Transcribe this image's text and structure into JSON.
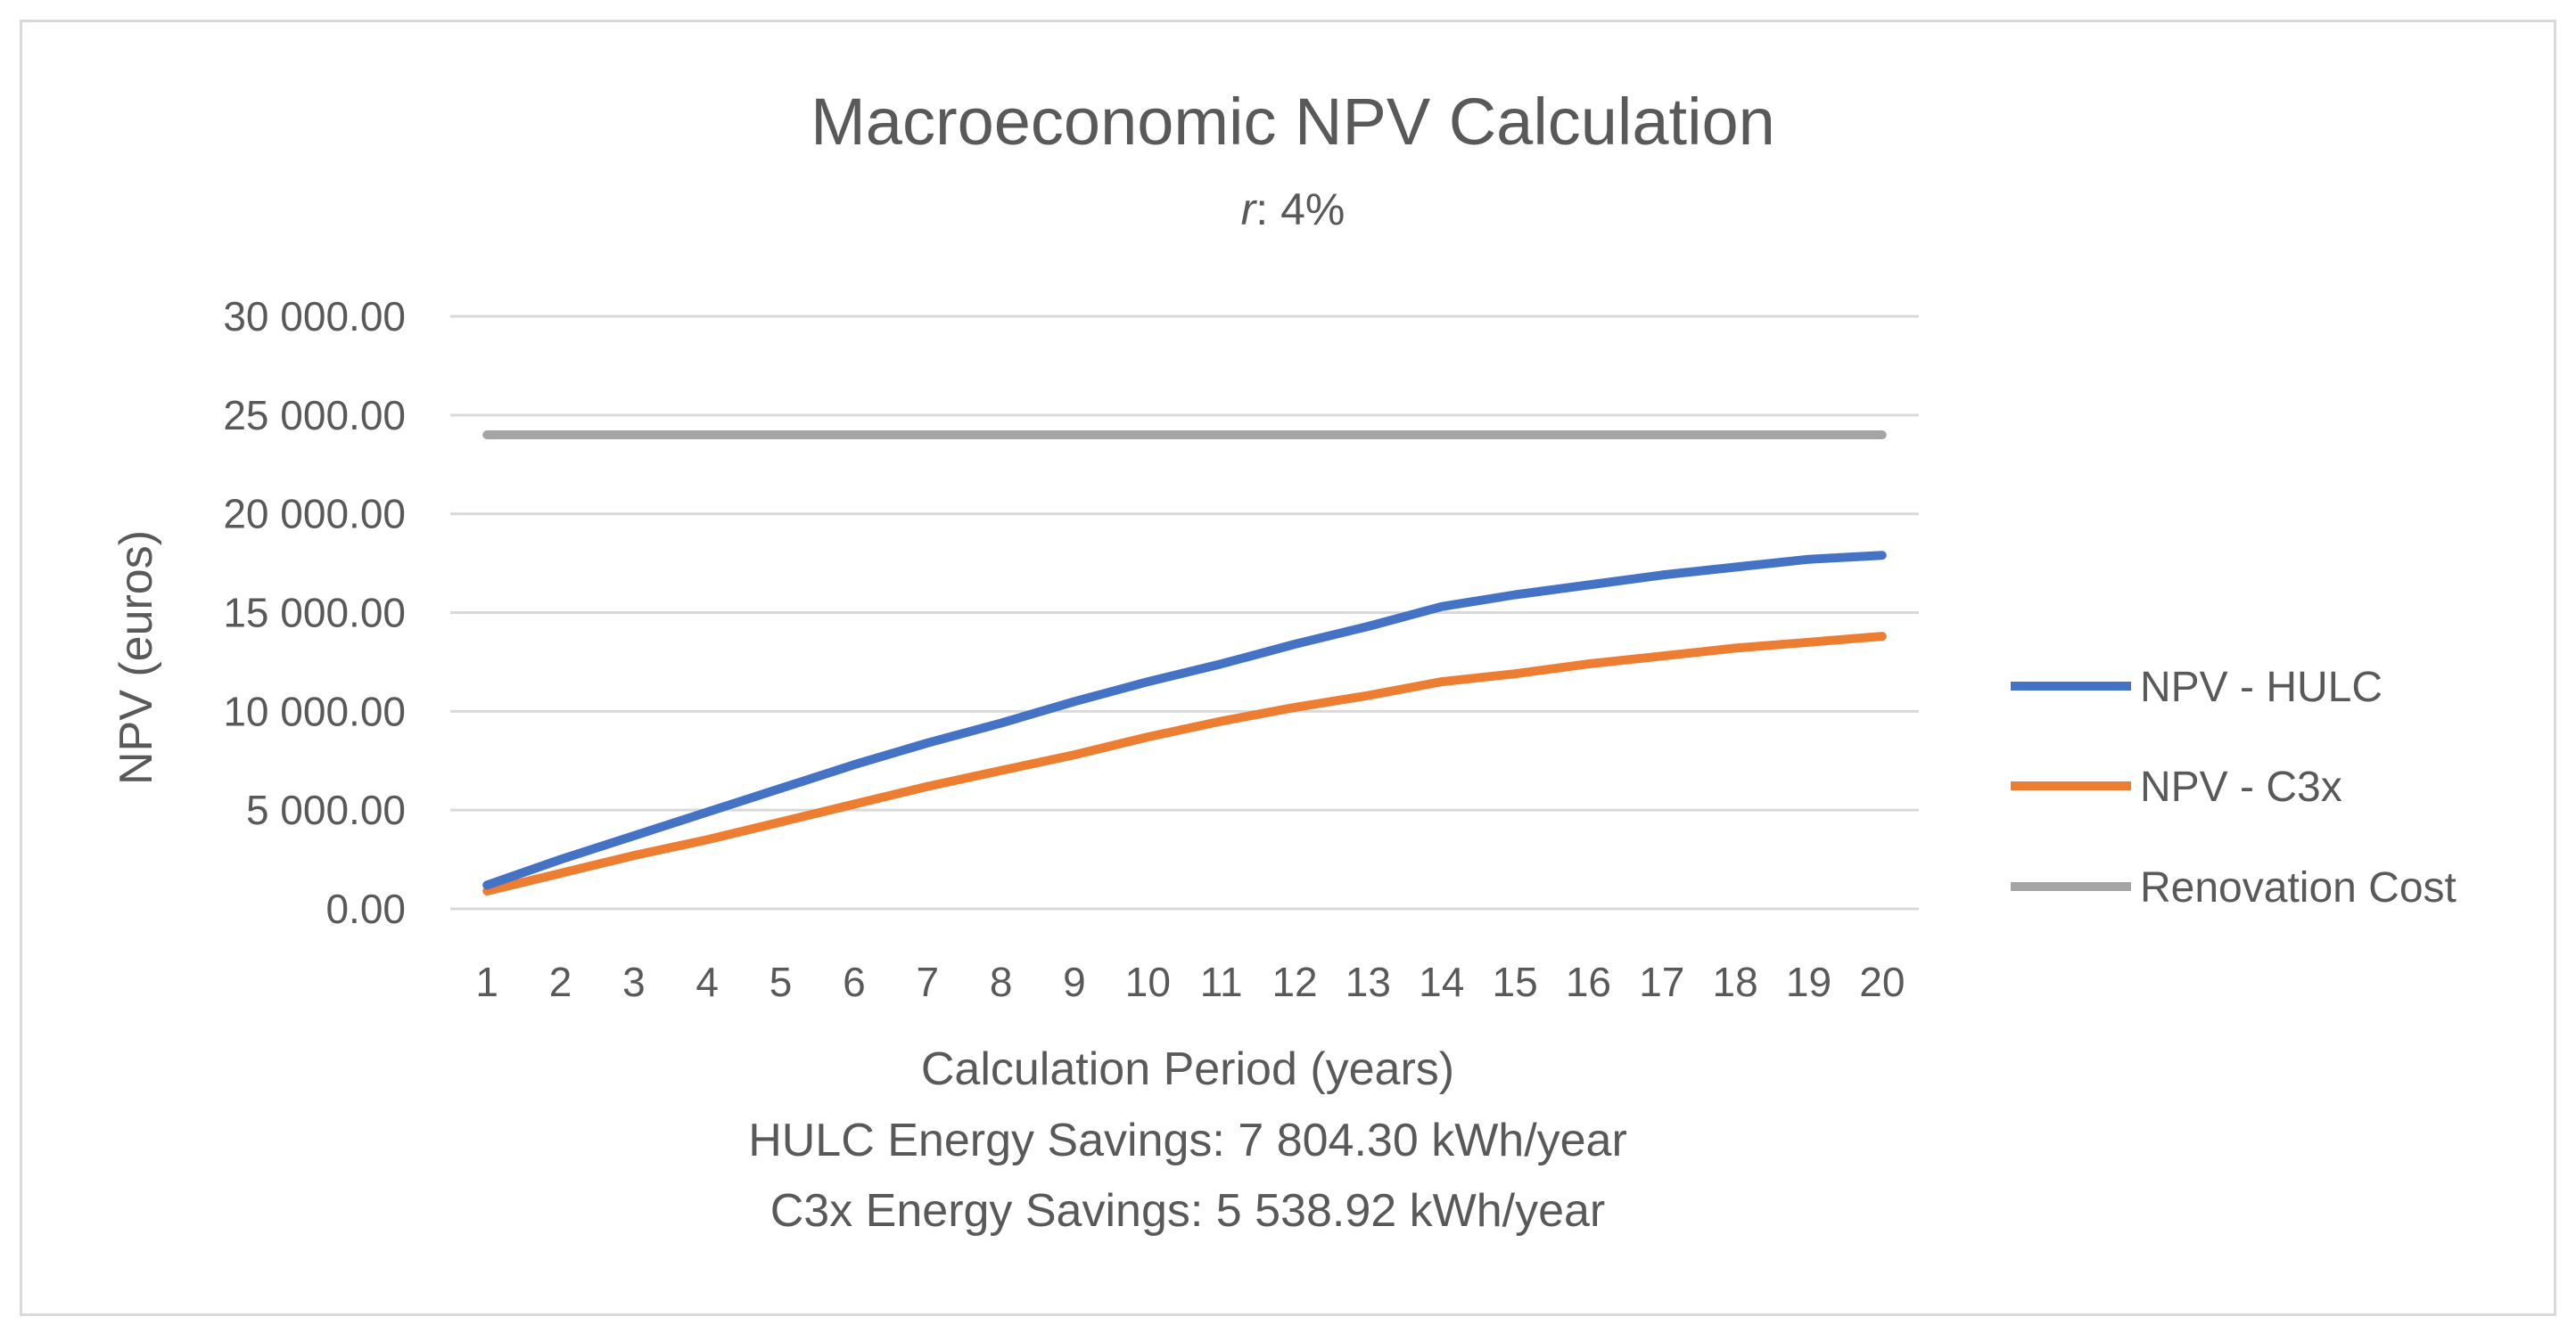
{
  "chart_data": {
    "type": "line",
    "title": "Macroeconomic NPV Calculation",
    "subtitle_var": "r",
    "subtitle_value": ": 4%",
    "xlabel": "Calculation Period (years)",
    "ylabel": "NPV (euros)",
    "categories": [
      "1",
      "2",
      "3",
      "4",
      "5",
      "6",
      "7",
      "8",
      "9",
      "10",
      "11",
      "12",
      "13",
      "14",
      "15",
      "16",
      "17",
      "18",
      "19",
      "20"
    ],
    "ylim": [
      0,
      30000
    ],
    "yticks": [
      0,
      5000,
      10000,
      15000,
      20000,
      25000,
      30000
    ],
    "ytick_labels": [
      "0.00",
      "5 000.00",
      "10 000.00",
      "15 000.00",
      "20 000.00",
      "25 000.00",
      "30 000.00"
    ],
    "grid": true,
    "legend_position": "right",
    "series": [
      {
        "name": "NPV - HULC",
        "color": "#4472c4",
        "values": [
          1200,
          2500,
          3700,
          4900,
          6100,
          7300,
          8400,
          9400,
          10500,
          11500,
          12400,
          13400,
          14300,
          15300,
          15900,
          16400,
          16900,
          17300,
          17700,
          17900
        ]
      },
      {
        "name": "NPV - C3x",
        "color": "#ed7d31",
        "values": [
          900,
          1800,
          2700,
          3500,
          4400,
          5300,
          6200,
          7000,
          7800,
          8700,
          9500,
          10200,
          10800,
          11500,
          11900,
          12400,
          12800,
          13200,
          13500,
          13800
        ]
      },
      {
        "name": "Renovation Cost",
        "color": "#a5a5a5",
        "values": [
          24000,
          24000,
          24000,
          24000,
          24000,
          24000,
          24000,
          24000,
          24000,
          24000,
          24000,
          24000,
          24000,
          24000,
          24000,
          24000,
          24000,
          24000,
          24000,
          24000
        ]
      }
    ],
    "footnotes": [
      "HULC Energy Savings: 7 804.30 kWh/year",
      "C3x Energy Savings: 5 538.92 kWh/year"
    ]
  }
}
